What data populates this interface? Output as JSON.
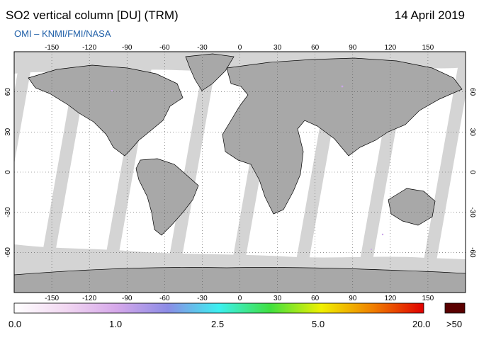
{
  "header": {
    "title": "SO2 vertical column [DU] (TRM)",
    "date": "14 April 2019",
    "subtitle": "OMI  –  KNMI/FMI/NASA"
  },
  "map": {
    "lon_ticks": [
      "-150",
      "-120",
      "-90",
      "-60",
      "-30",
      "0",
      "30",
      "60",
      "90",
      "120",
      "150"
    ],
    "lat_ticks": [
      "60",
      "30",
      "0",
      "-30",
      "-60"
    ],
    "colors": {
      "no_data": "#d4d4d4",
      "land_no_data": "#a8a8a8",
      "background_low": "#ffffff",
      "coastline": "#000000",
      "grid": "#555555"
    }
  },
  "colorbar": {
    "labels": [
      "0.0",
      "1.0",
      "2.5",
      "5.0",
      "20.0"
    ],
    "overflow_label": ">50",
    "overflow_color": "#5a0000",
    "gradient_colors": [
      "#ffffff",
      "#f2d8f2",
      "#d6a8ea",
      "#8c8ce6",
      "#3cf0f0",
      "#40e040",
      "#f0f000",
      "#f08000",
      "#e00000"
    ]
  }
}
